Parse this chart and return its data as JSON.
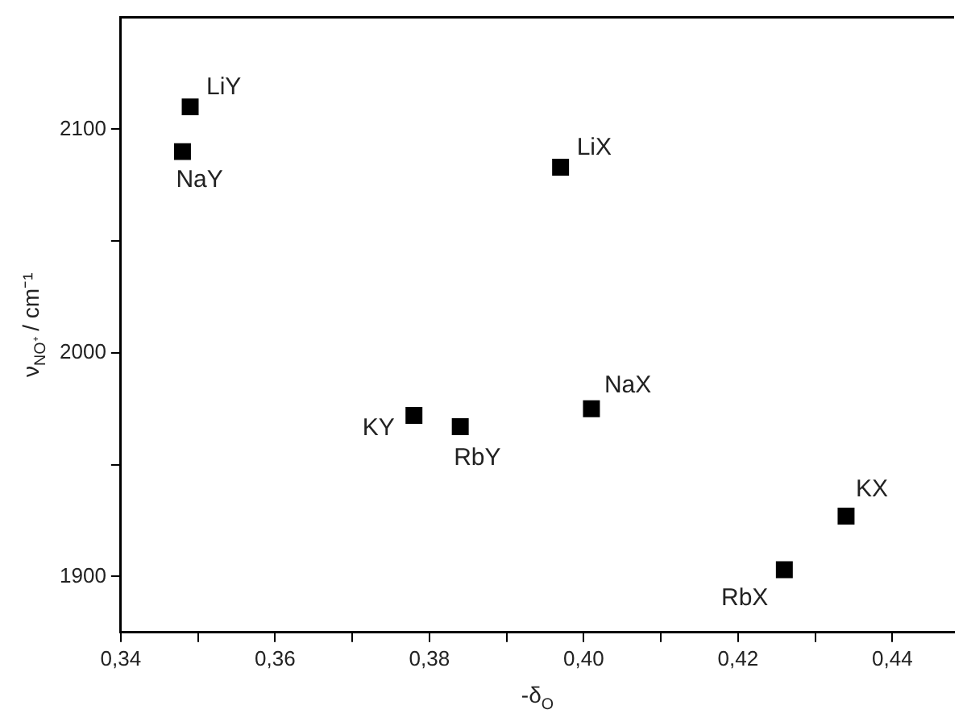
{
  "chart_data": {
    "type": "scatter",
    "xlabel": "-δ$_{O}$",
    "ylabel": "ν$_{NO⁺}$ / cm⁻¹",
    "x": [
      0.349,
      0.348,
      0.397,
      0.378,
      0.384,
      0.401,
      0.434,
      0.426
    ],
    "series": [
      {
        "color": "#000000",
        "values": [
          2110,
          2090,
          2083,
          1972,
          1967,
          1975,
          1927,
          1903
        ]
      }
    ],
    "marker": "square",
    "grid": false,
    "legend": false,
    "xlim": [
      0.34,
      0.448
    ],
    "ylim": [
      1875,
      2150
    ],
    "xticks": [
      {
        "value": 0.34,
        "label": "0,34"
      },
      {
        "value": 0.35,
        "label": null
      },
      {
        "value": 0.36,
        "label": "0,36"
      },
      {
        "value": 0.37,
        "label": null
      },
      {
        "value": 0.38,
        "label": "0,38"
      },
      {
        "value": 0.39,
        "label": null
      },
      {
        "value": 0.4,
        "label": "0,40"
      },
      {
        "value": 0.41,
        "label": null
      },
      {
        "value": 0.42,
        "label": "0,42"
      },
      {
        "value": 0.43,
        "label": null
      },
      {
        "value": 0.44,
        "label": "0,44"
      }
    ],
    "yticks": [
      1900,
      {
        "value": 1950,
        "label": null
      },
      2000,
      {
        "value": 2050,
        "label": null
      },
      2100
    ],
    "annotations": [
      {
        "text": "LiY",
        "x": 0.349,
        "y": 2110
      },
      {
        "text": "NaY",
        "x": 0.348,
        "y": 2090
      },
      {
        "text": "LiX",
        "x": 0.397,
        "y": 2083
      },
      {
        "text": "KY",
        "x": 0.378,
        "y": 1972
      },
      {
        "text": "RbY",
        "x": 0.384,
        "y": 1967
      },
      {
        "text": "NaX",
        "x": 0.401,
        "y": 1975
      },
      {
        "text": "KX",
        "x": 0.434,
        "y": 1927
      },
      {
        "text": "RbX",
        "x": 0.426,
        "y": 1903
      }
    ]
  }
}
